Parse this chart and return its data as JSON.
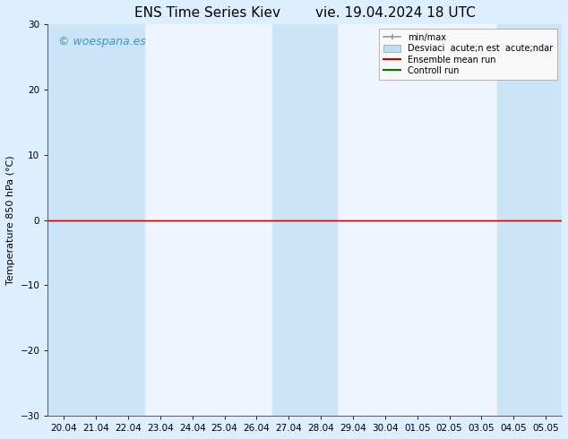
{
  "title": "ENS Time Series Kiev",
  "title_date": "vie. 19.04.2024 18 UTC",
  "ylabel": "Temperature 850 hPa (°C)",
  "watermark": "© woespana.es",
  "watermark_color": "#3399cc",
  "ylim": [
    -30,
    30
  ],
  "yticks": [
    -30,
    -20,
    -10,
    0,
    10,
    20,
    30
  ],
  "x_labels": [
    "20.04",
    "21.04",
    "22.04",
    "23.04",
    "24.04",
    "25.04",
    "26.04",
    "27.04",
    "28.04",
    "29.04",
    "30.04",
    "01.05",
    "02.05",
    "03.05",
    "04.05",
    "05.05"
  ],
  "bg_color": "#ddeeff",
  "plot_bg_color": "#eef5ff",
  "shaded_bands_color": "#cce4f7",
  "shaded_x_indices": [
    0,
    1,
    2,
    7,
    8,
    14,
    15
  ],
  "zero_line_y": 0.0,
  "ensemble_mean_color": "#cc0000",
  "control_run_color": "#007700",
  "legend_label_minmax": "min/max",
  "legend_label_std": "Desviaci  acute;n est  acute;ndar",
  "legend_label_ensemble": "Ensemble mean run",
  "legend_label_control": "Controll run",
  "minmax_color": "#999999",
  "std_color": "#bbddf5",
  "title_fontsize": 11,
  "axis_fontsize": 8,
  "tick_fontsize": 7.5,
  "watermark_fontsize": 9,
  "legend_fontsize": 7
}
